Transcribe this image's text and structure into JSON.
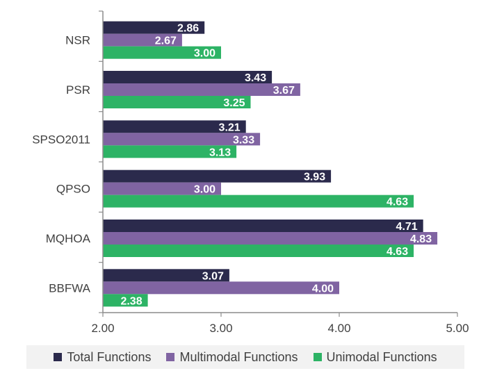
{
  "chart_data": {
    "type": "bar",
    "orientation": "horizontal",
    "categories": [
      "NSR",
      "PSR",
      "SPSO2011",
      "QPSO",
      "MQHOA",
      "BBFWA"
    ],
    "series": [
      {
        "name": "Total Functions",
        "color": "#2b2a4c",
        "values": [
          2.86,
          3.43,
          3.21,
          3.93,
          4.71,
          3.07
        ],
        "labels": [
          "2.86",
          "3.43",
          "3.21",
          "3.93",
          "4.71",
          "3.07"
        ]
      },
      {
        "name": "Multimodal Functions",
        "color": "#8064a2",
        "values": [
          2.67,
          3.67,
          3.33,
          3.0,
          4.83,
          4.0
        ],
        "labels": [
          "2.67",
          "3.67",
          "3.33",
          "3.00",
          "4.83",
          "4.00"
        ]
      },
      {
        "name": "Unimodal Functions",
        "color": "#2db365",
        "values": [
          3.0,
          3.25,
          3.13,
          4.63,
          4.63,
          2.38
        ],
        "labels": [
          "3.00",
          "3.25",
          "3.13",
          "4.63",
          "4.63",
          "2.38"
        ]
      }
    ],
    "xlim": [
      2.0,
      5.0
    ],
    "xticks": [
      "2.00",
      "3.00",
      "4.00",
      "5.00"
    ],
    "grid": false,
    "legend_position": "bottom"
  }
}
